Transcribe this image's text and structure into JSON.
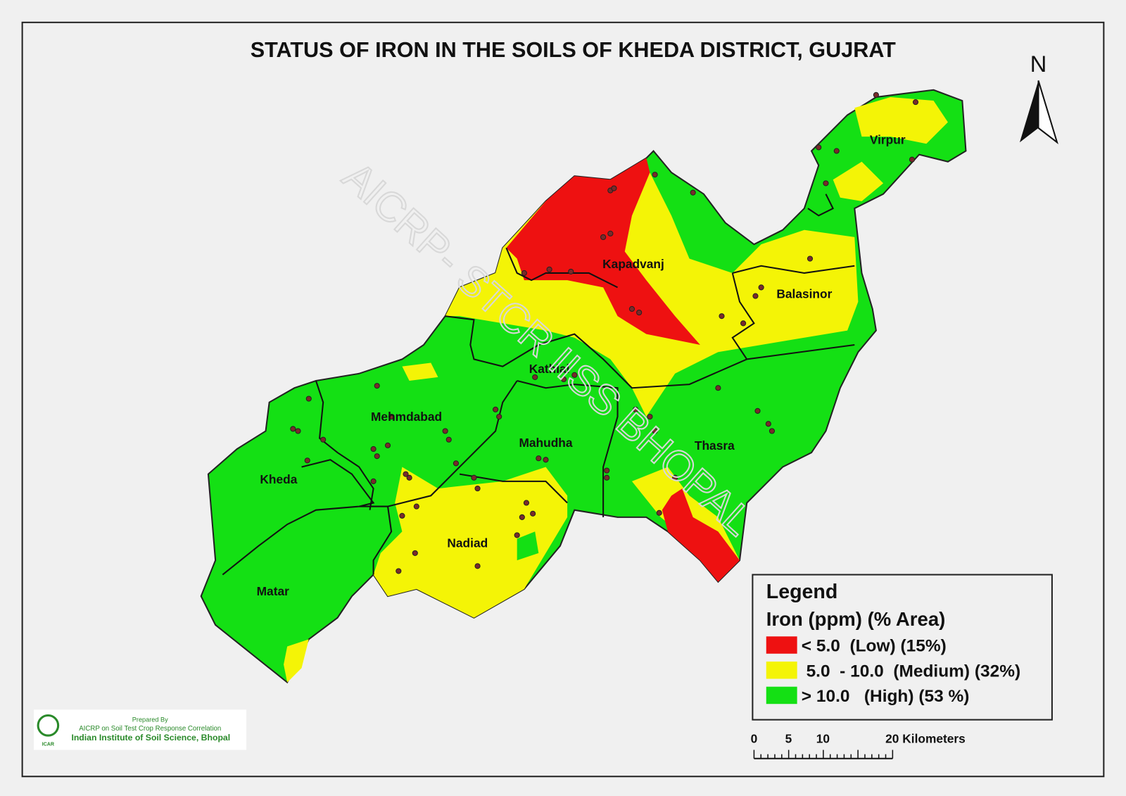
{
  "title": "STATUS OF IRON IN THE SOILS OF KHEDA DISTRICT,  GUJRAT",
  "north": "N",
  "watermark": "AICRP- STCR IISS BHOPAL",
  "districts": [
    "Virpur",
    "Kapadvanj",
    "Balasinor",
    "Kathlal",
    "Mehmdabad",
    "Mahudha",
    "Thasra",
    "Kheda",
    "Nadiad",
    "Matar"
  ],
  "legend": {
    "title": "Legend",
    "subtitle": "Iron (ppm) (% Area)",
    "items": [
      {
        "label": "< 5.0  (Low) (15%)",
        "color": "#ee1111"
      },
      {
        "label": " 5.0  - 10.0  (Medium) (32%)",
        "color": "#f4f406"
      },
      {
        "label": "> 10.0   (High) (53 %)",
        "color": "#14e014"
      }
    ]
  },
  "scale_bar": [
    "0",
    "5",
    "10",
    "20 Kilometers"
  ],
  "credit": {
    "line1": "Prepared By",
    "line2": "AICRP on Soil Test Crop Response Correlation",
    "line3": "Indian Institute of Soil Science, Bhopal",
    "logo": "ICAR"
  }
}
